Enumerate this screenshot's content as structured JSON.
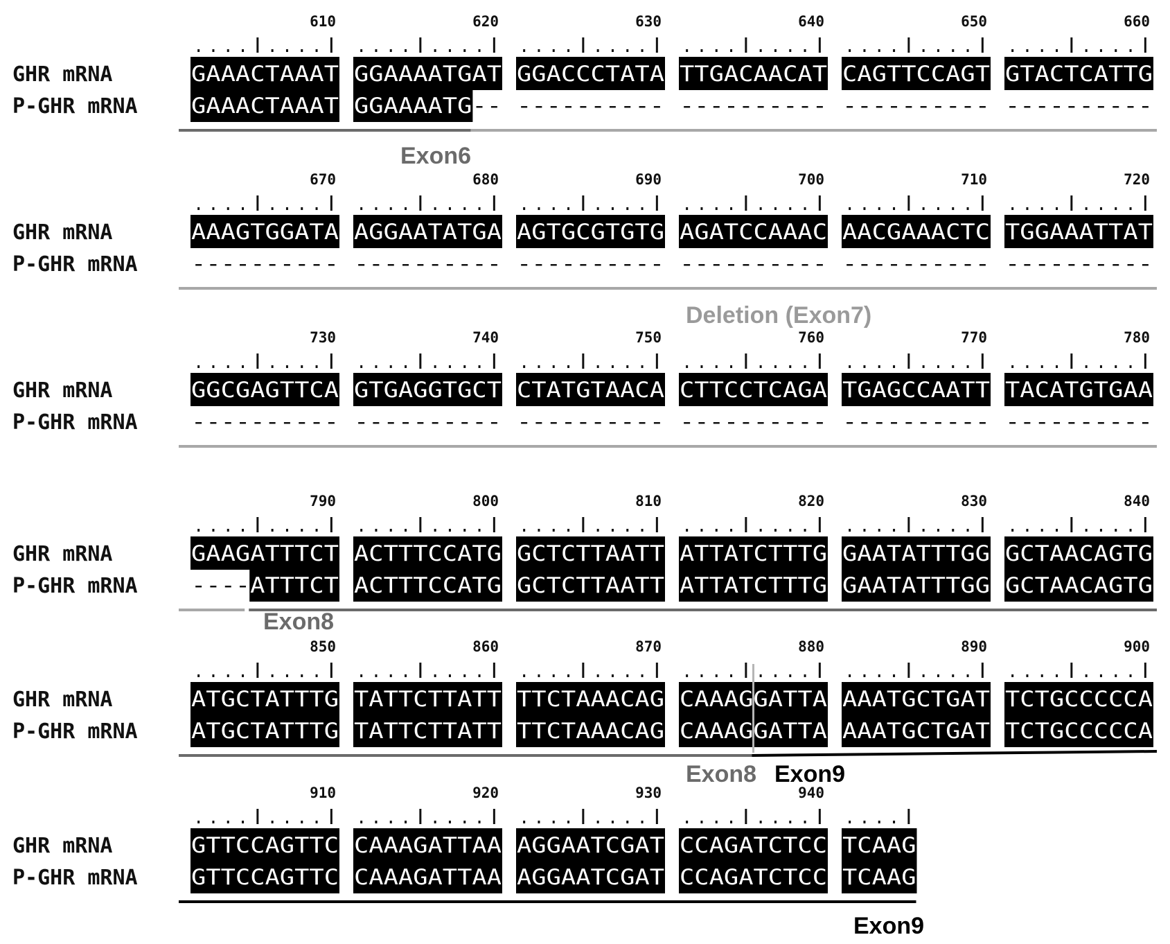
{
  "figure": {
    "row_labels": [
      "GHR mRNA",
      "P-GHR mRNA"
    ],
    "blocks": [
      {
        "positions": [
          "610",
          "620",
          "630",
          "640",
          "650",
          "660"
        ],
        "ghr": [
          "GAAACTAAAT",
          "GGAAAATGAT",
          "GGACCCTATA",
          "TTGACAACAT",
          "CAGTTCCAGT",
          "GTACTCATTG"
        ],
        "pghr": [
          "GAAACTAAAT",
          "GGAAAATG--",
          "----------",
          "----------",
          "----------",
          "----------"
        ],
        "regions": [
          {
            "label": "Exon6",
            "color": "#6b6b6b",
            "from": 0,
            "to": 18
          },
          {
            "label": "",
            "color": "#a8a8a8",
            "from": 18,
            "to": 60
          }
        ]
      },
      {
        "positions": [
          "670",
          "680",
          "690",
          "700",
          "710",
          "720"
        ],
        "ghr": [
          "AAAGTGGATA",
          "AGGAATATGA",
          "AGTGCGTGTG",
          "AGATCCAAAC",
          "AACGAAACTC",
          "TGGAAATTAT"
        ],
        "pghr": [
          "----------",
          "----------",
          "----------",
          "----------",
          "----------",
          "----------"
        ],
        "regions": [
          {
            "label": "Deletion (Exon7)",
            "color": "#a8a8a8",
            "from": 0,
            "to": 60
          }
        ]
      },
      {
        "positions": [
          "730",
          "740",
          "750",
          "760",
          "770",
          "780"
        ],
        "ghr": [
          "GGCGAGTTCA",
          "GTGAGGTGCT",
          "CTATGTAACA",
          "CTTCCTCAGA",
          "TGAGCCAATT",
          "TACATGTGAA"
        ],
        "pghr": [
          "----------",
          "----------",
          "----------",
          "----------",
          "----------",
          "----------"
        ],
        "regions": [
          {
            "label": "",
            "color": "#a8a8a8",
            "from": 0,
            "to": 60
          }
        ]
      },
      {
        "positions": [
          "790",
          "800",
          "810",
          "820",
          "830",
          "840"
        ],
        "ghr": [
          "GAAGATTTCT",
          "ACTTTCCATG",
          "GCTCTTAATT",
          "ATTATCTTTG",
          "GAATATTTGG",
          "GCTAACAGTG"
        ],
        "pghr": [
          "----ATTTCT",
          "ACTTTCCATG",
          "GCTCTTAATT",
          "ATTATCTTTG",
          "GAATATTTGG",
          "GCTAACAGTG"
        ],
        "regions": [
          {
            "label": "",
            "color": "#a8a8a8",
            "from": 0,
            "to": 4
          },
          {
            "label": "Exon8",
            "color": "#6b6b6b",
            "from": 4,
            "to": 60
          }
        ]
      },
      {
        "positions": [
          "850",
          "860",
          "870",
          "880",
          "890",
          "900"
        ],
        "ghr": [
          "ATGCTATTTG",
          "TATTCTTATT",
          "TTCTAAACAG",
          "CAAAGGATTA",
          "AAATGCTGAT",
          "TCTGCCCCCA"
        ],
        "pghr": [
          "ATGCTATTTG",
          "TATTCTTATT",
          "TTCTAAACAG",
          "CAAAGGATTA",
          "AAATGCTGAT",
          "TCTGCCCCCA"
        ],
        "regions": [
          {
            "label": "Exon8",
            "color": "#6b6b6b",
            "from": 0,
            "to": 35
          },
          {
            "label": "Exon9",
            "color": "#000000",
            "from": 35,
            "to": 60
          }
        ],
        "junction": 35
      },
      {
        "positions": [
          "910",
          "920",
          "930",
          "940"
        ],
        "ghr": [
          "GTTCCAGTTC",
          "CAAAGATTAA",
          "AGGAATCGAT",
          "CCAGATCTCC",
          "TCAAG"
        ],
        "pghr": [
          "GTTCCAGTTC",
          "CAAAGATTAA",
          "AGGAATCGAT",
          "CCAGATCTCC",
          "TCAAG"
        ],
        "regions": [
          {
            "label": "Exon9",
            "color": "#000000",
            "from": 0,
            "to": 45
          }
        ]
      }
    ]
  }
}
